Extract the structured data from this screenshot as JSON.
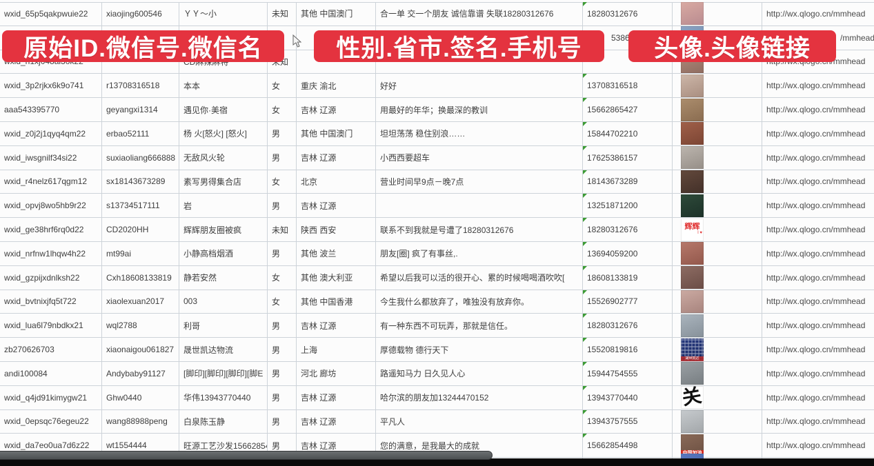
{
  "banners": [
    {
      "label": "原始ID.微信号.微信名"
    },
    {
      "label": "性别.省市.签名.手机号"
    },
    {
      "label": "头像.头像链接"
    }
  ],
  "colors": {
    "banner_red": "#e4333f",
    "grid_line": "#cdd3d9",
    "cell_text": "#3e3e3e",
    "flag_green": "#3d9b35"
  },
  "link_text_common": "http://wx.qlogo.cn/mmhead",
  "table": {
    "rows": [
      {
        "wxid": "wxid_65p5qakpwuie22",
        "weixin_id": "xiaojing600546",
        "name": "ＹＹ～小",
        "gender": "未知",
        "region": "其他 中国澳门",
        "signature": "合一单 交一个朋友 诚信靠谱 失联18280312676",
        "phone": "18280312676",
        "link": "http://wx.qlogo.cn/mmhead",
        "flag": true,
        "avatar": {
          "type": "photo",
          "c1": "#d9aaa2",
          "c2": "#b98b90"
        }
      },
      {
        "wxid": "",
        "weixin_id": "",
        "name": "",
        "gender": "",
        "region": "",
        "signature": "",
        "phone": "5386",
        "phone_pad": 35,
        "link": "/mmhead",
        "link_pad": 107,
        "flag": false,
        "avatar": {
          "type": "photo",
          "c1": "#8ba3c4",
          "c2": "#6f87a8"
        }
      },
      {
        "wxid": "wxid_h1xj048al3ok22",
        "weixin_id": "",
        "name": "CD麻辣麻将",
        "gender": "未知",
        "region": "",
        "signature": "",
        "phone": "",
        "link": "http://wx.qlogo.cn/mmhead",
        "flag": false,
        "avatar": {
          "type": "photo",
          "c1": "#b28d7e",
          "c2": "#8f6c60"
        }
      },
      {
        "wxid": "wxid_3p2rjkx6k9o741",
        "weixin_id": "r13708316518",
        "name": "本本",
        "gender": "女",
        "region": "重庆 渝北",
        "signature": "好好",
        "phone": "13708316518",
        "link": "http://wx.qlogo.cn/mmhead",
        "flag": true,
        "avatar": {
          "type": "photo",
          "c1": "#cdb7a9",
          "c2": "#a98e80"
        }
      },
      {
        "wxid": "aaa543395770",
        "weixin_id": "geyangxi1314",
        "name": "遇见你·美宿",
        "gender": "女",
        "region": "吉林 辽源",
        "signature": "用最好的年华；换最深的教训",
        "phone": "15662865427",
        "link": "http://wx.qlogo.cn/mmhead",
        "flag": true,
        "avatar": {
          "type": "photo",
          "c1": "#ab8d6d",
          "c2": "#8a6c50"
        }
      },
      {
        "wxid": "wxid_z0j2j1qyq4qm22",
        "weixin_id": "erbao52111",
        "name": "杨 火[怒火] [怒火]",
        "gender": "男",
        "region": "其他 中国澳门",
        "signature": "坦坦荡荡 稳住别浪……",
        "phone": "15844702210",
        "link": "http://wx.qlogo.cn/mmhead",
        "flag": true,
        "avatar": {
          "type": "photo",
          "c1": "#a06049",
          "c2": "#7c4534"
        }
      },
      {
        "wxid": "wxid_iwsgnilf34si22",
        "weixin_id": "suxiaoliang666888",
        "name": "无敌风火轮",
        "gender": "男",
        "region": "吉林 辽源",
        "signature": "小西西要超车",
        "phone": "17625386157",
        "link": "http://wx.qlogo.cn/mmhead",
        "flag": true,
        "avatar": {
          "type": "photo",
          "c1": "#bcb5ae",
          "c2": "#968f88"
        }
      },
      {
        "wxid": "wxid_r4nelz617qgm12",
        "weixin_id": "sx18143673289",
        "name": "素写男得集合店",
        "gender": "女",
        "region": "北京",
        "signature": "营业时间早9点－晚7点",
        "phone": "18143673289",
        "link": "http://wx.qlogo.cn/mmhead",
        "flag": true,
        "avatar": {
          "type": "photo",
          "c1": "#63493c",
          "c2": "#433029"
        }
      },
      {
        "wxid": "wxid_opvj8wo5hb9r22",
        "weixin_id": "s13734517111",
        "name": "岩",
        "gender": "男",
        "region": "吉林 辽源",
        "signature": "",
        "phone": "13251871200",
        "link": "http://wx.qlogo.cn/mmhead",
        "flag": true,
        "avatar": {
          "type": "photo",
          "c1": "#2e4a3a",
          "c2": "#1c3128"
        }
      },
      {
        "wxid": "wxid_ge38hrf6rq0d22",
        "weixin_id": "CD2020HH",
        "name": "辉辉朋友圈被疯",
        "gender": "未知",
        "region": "陕西 西安",
        "signature": "联系不到我就是号遭了18280312676",
        "phone": "18280312676",
        "link": "http://wx.qlogo.cn/mmhead",
        "flag": true,
        "avatar": {
          "type": "hui",
          "label": "辉辉",
          "sublabel": "I ♥"
        }
      },
      {
        "wxid": "wxid_nrfnw1lhqw4h22",
        "weixin_id": "mt99ai",
        "name": "小静高档烟酒",
        "gender": "男",
        "region": "其他 波兰",
        "signature": "朋友[圈] 疯了有事丝,.",
        "phone": "13694059200",
        "link": "http://wx.qlogo.cn/mmhead",
        "flag": true,
        "avatar": {
          "type": "photo",
          "c1": "#b6786a",
          "c2": "#93584c"
        }
      },
      {
        "wxid": "wxid_gzpijxdnlksh22",
        "weixin_id": "Cxh18608133819",
        "name": "静若安然",
        "gender": "女",
        "region": "其他 澳大利亚",
        "signature": "希望以后我可以活的很开心、累的时候喝喝酒吹吹[",
        "phone": "18608133819",
        "link": "http://wx.qlogo.cn/mmhead",
        "flag": true,
        "avatar": {
          "type": "photo",
          "c1": "#8d6c63",
          "c2": "#6b4d46"
        }
      },
      {
        "wxid": "wxid_bvtnixjfq5t722",
        "weixin_id": "xiaolexuan2017",
        "name": "003",
        "gender": "女",
        "region": "其他 中国香港",
        "signature": "今生我什么都放弃了，唯独没有放弃你。",
        "phone": "15526902777",
        "link": "http://wx.qlogo.cn/mmhead",
        "flag": true,
        "avatar": {
          "type": "photo",
          "c1": "#cbaaa2",
          "c2": "#a8847e"
        }
      },
      {
        "wxid": "wxid_lua6l79nbdkx21",
        "weixin_id": "wql2788",
        "name": "利哥",
        "gender": "男",
        "region": "吉林 辽源",
        "signature": "有一种东西不可玩弄，那就是信任。",
        "phone": "18280312676",
        "link": "http://wx.qlogo.cn/mmhead",
        "flag": true,
        "avatar": {
          "type": "photo",
          "c1": "#aab4bd",
          "c2": "#87919a"
        }
      },
      {
        "wxid": "zb270626703",
        "weixin_id": "xiaonaigou061827",
        "name": "晟世凯达物流",
        "gender": "男",
        "region": "上海",
        "signature": "厚德载物 德行天下",
        "phone": "15520819816",
        "link": "http://wx.qlogo.cn/mmhead",
        "flag": true,
        "avatar": {
          "type": "qr",
          "c1": "#24377d",
          "c2": "#1a2a63",
          "sublabel": "晟世凯达"
        }
      },
      {
        "wxid": "andi100084",
        "weixin_id": "Andybaby91127",
        "name": "[脚印][脚印][脚印][脚E",
        "gender": "男",
        "region": "河北 廊坊",
        "signature": "路遥知马力 日久见人心",
        "phone": "15944754555",
        "link": "http://wx.qlogo.cn/mmhead",
        "flag": true,
        "avatar": {
          "type": "photo",
          "c1": "#9aa0a4",
          "c2": "#787e82"
        }
      },
      {
        "wxid": "wxid_q4jd91kimygw21",
        "weixin_id": "Ghw0440",
        "name": "华伟13943770440",
        "gender": "男",
        "region": "吉林 辽源",
        "signature": "哈尔滨的朋友加13244470152",
        "phone": "13943770440",
        "link": "http://wx.qlogo.cn/mmhead",
        "flag": true,
        "avatar": {
          "type": "guan",
          "label": "关"
        }
      },
      {
        "wxid": "wxid_0epsqc76egeu22",
        "weixin_id": "wang88988peng",
        "name": "白泉陈玉静",
        "gender": "男",
        "region": "吉林 辽源",
        "signature": "平凡人",
        "phone": "13943757555",
        "link": "http://wx.qlogo.cn/mmhead",
        "flag": true,
        "avatar": {
          "type": "photo",
          "c1": "#c6cacd",
          "c2": "#a3a7aa"
        }
      },
      {
        "wxid": "wxid_da7eo0ua7d6z22",
        "weixin_id": "wt1554444",
        "name": "旺源工艺沙发15662854",
        "gender": "男",
        "region": "吉林 辽源",
        "signature": "您的满意，是我最大的成就",
        "phone": "15662854498",
        "link": "http://wx.qlogo.cn/mmhead",
        "flag": true,
        "avatar": {
          "type": "jiayou",
          "c1": "#8a6a58",
          "c2": "#6b4f41",
          "label": "中国加油"
        }
      },
      {
        "wxid": "",
        "weixin_id": "",
        "name": "",
        "gender": "",
        "region": "",
        "signature": "",
        "phone": "",
        "link": "",
        "flag": false,
        "avatar": {
          "type": "photo",
          "c1": "#5b79c0",
          "c2": "#3d5a9e"
        },
        "avatar_lift": 14
      }
    ]
  }
}
